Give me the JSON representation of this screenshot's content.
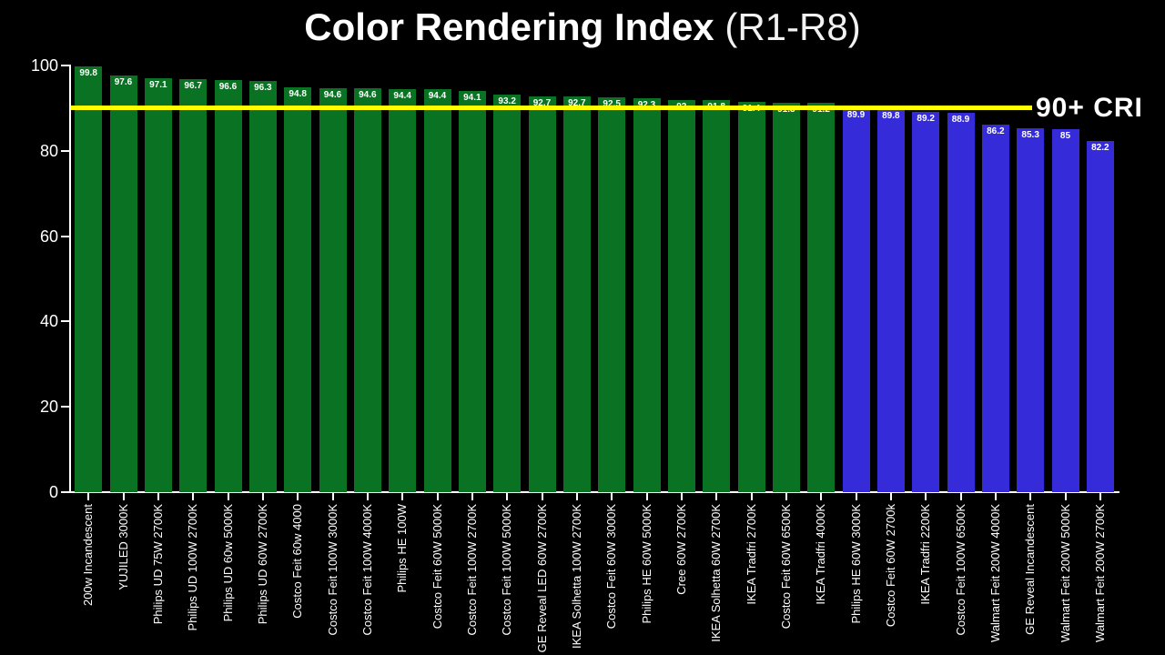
{
  "title": {
    "main": "Color Rendering Index",
    "suffix": " (R1-R8)"
  },
  "chart_data": {
    "type": "bar",
    "title": "Color Rendering Index (R1-R8)",
    "xlabel": "",
    "ylabel": "",
    "ylim": [
      0,
      100
    ],
    "yticks": [
      0,
      20,
      40,
      60,
      80,
      100
    ],
    "grid": false,
    "legend": "none",
    "background_color": "#000000",
    "axis_color": "#ffffff",
    "categories": [
      "200w Incandescent",
      "YUJILED 3000K",
      "Philips UD 75W 2700K",
      "Philips UD 100W 2700K",
      "Philips UD 60w 5000K",
      "Philips UD 60W 2700K",
      "Costco Feit 60w 4000",
      "Costco Feit 100W 3000K",
      "Costco Feit 100W 4000K",
      "Philips HE 100W",
      "Costco Feit 60W 5000K",
      "Costco Feit 100W 2700K",
      "Costco Feit 100W 5000K",
      "GE Reveal LED 60W 2700K",
      "IKEA Solhetta 100W 2700K",
      "Costco Feit 60W 3000K",
      "Philips HE 60W 5000K",
      "Cree 60W 2700K",
      "IKEA Solhetta 60W 2700K",
      "IKEA Tradfri 2700K",
      "Costco Feit 60W 6500K",
      "IKEA Tradfri 4000K",
      "Philips HE 60W 3000K",
      "Costco Feit 60W 2700k",
      "IKEA Tradfri 2200K",
      "Costco Feit 100W 6500K",
      "Walmart Feit 200W 4000K",
      "GE Reveal Incandescent",
      "Walmart Feit 200W 5000K",
      "Walmart Feit 200W 2700K"
    ],
    "values": [
      99.8,
      97.6,
      97.1,
      96.7,
      96.6,
      96.3,
      94.8,
      94.6,
      94.6,
      94.4,
      94.4,
      94.1,
      93.2,
      92.7,
      92.7,
      92.5,
      92.3,
      92,
      91.8,
      91.4,
      91.3,
      91.2,
      89.9,
      89.8,
      89.2,
      88.9,
      86.2,
      85.3,
      85,
      82.2
    ],
    "threshold": {
      "value": 90,
      "label": "90+ CRI",
      "line_color": "#ffff00"
    },
    "colors": {
      "above_threshold_bar": "#0a7323",
      "below_threshold_bar": "#352bd9",
      "value_label": "#ffffff",
      "tick_label": "#ffffff"
    }
  }
}
